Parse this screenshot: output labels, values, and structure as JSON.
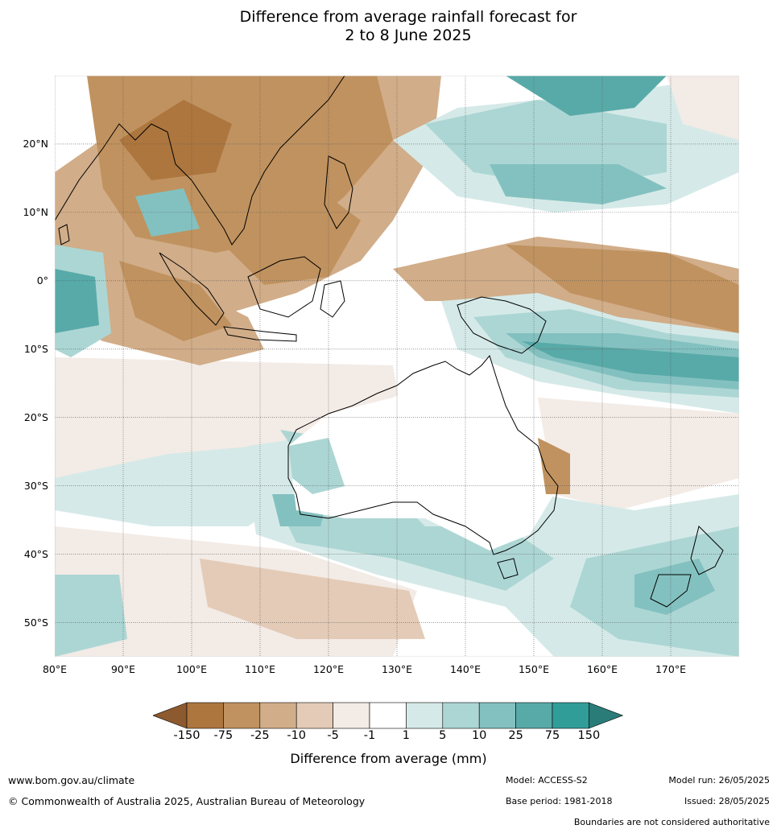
{
  "title": {
    "line1": "Difference from average rainfall forecast for",
    "line2": "2 to 8 June 2025"
  },
  "map": {
    "lon_range": [
      80,
      180
    ],
    "lat_range": [
      -55,
      30
    ],
    "lat_ticks": [
      {
        "value": 20,
        "label": "20°N"
      },
      {
        "value": 10,
        "label": "10°N"
      },
      {
        "value": 0,
        "label": "0°"
      },
      {
        "value": -10,
        "label": "10°S"
      },
      {
        "value": -20,
        "label": "20°S"
      },
      {
        "value": -30,
        "label": "30°S"
      },
      {
        "value": -40,
        "label": "40°S"
      },
      {
        "value": -50,
        "label": "50°S"
      }
    ],
    "lon_ticks": [
      {
        "value": 80,
        "label": "80°E"
      },
      {
        "value": 90,
        "label": "90°E"
      },
      {
        "value": 100,
        "label": "100°E"
      },
      {
        "value": 110,
        "label": "110°E"
      },
      {
        "value": 120,
        "label": "120°E"
      },
      {
        "value": 130,
        "label": "130°E"
      },
      {
        "value": 140,
        "label": "140°E"
      },
      {
        "value": 150,
        "label": "150°E"
      },
      {
        "value": 160,
        "label": "160°E"
      },
      {
        "value": 170,
        "label": "170°E"
      }
    ],
    "grid": true
  },
  "colorbar": {
    "title": "Difference from average (mm)",
    "labels": [
      "-150",
      "-75",
      "-25",
      "-10",
      "-5",
      "-1",
      "1",
      "5",
      "10",
      "25",
      "75",
      "150"
    ],
    "colors": [
      "#8c5a2e",
      "#ad763f",
      "#c0925f",
      "#d1ad89",
      "#e3cbb7",
      "#f3ebe6",
      "#ffffff",
      "#d5eae8",
      "#acd6d4",
      "#83c1c0",
      "#58aaa8",
      "#319d99",
      "#2a7c78"
    ]
  },
  "footer": {
    "website": "www.bom.gov.au/climate",
    "copyright": "© Commonwealth of Australia 2025, Australian Bureau of Meteorology",
    "model": "Model: ACCESS-S2",
    "base_period": "Base period: 1981-2018",
    "model_run": "Model run: 26/05/2025",
    "issued": "Issued: 28/05/2025",
    "disclaimer": "Boundaries are not considered authoritative"
  }
}
